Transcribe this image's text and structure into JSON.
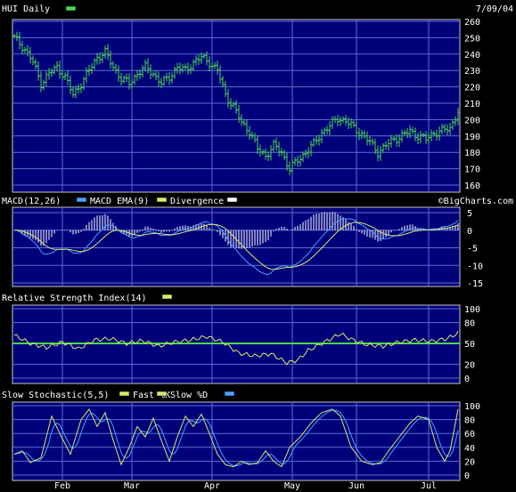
{
  "colors": {
    "plot_bg": "#00007a",
    "grid": "#5a6fd0",
    "border": "#c8c8c8",
    "price": "#4cd64c",
    "macd": "#4aa0ff",
    "macd_ema": "#d8e86a",
    "divergence": "#ffffff",
    "rsi": "#d8e86a",
    "rsi_mid": "#4cd64c",
    "fast_k": "#d8e86a",
    "slow_d": "#4aa0ff"
  },
  "header": {
    "title": "HUI Daily",
    "date": "7/09/04",
    "watermark": "©BigCharts.com"
  },
  "x_axis": {
    "months": [
      "Feb",
      "Mar",
      "Apr",
      "May",
      "Jun",
      "Jul"
    ]
  },
  "chart_data": [
    {
      "type": "ohlc",
      "name": "price",
      "title": "HUI Daily",
      "ylim": [
        160,
        260
      ],
      "yticks": [
        160,
        170,
        180,
        190,
        200,
        210,
        220,
        230,
        240,
        250,
        260
      ],
      "keypoints": [
        [
          0,
          250
        ],
        [
          4,
          243
        ],
        [
          7,
          235
        ],
        [
          10,
          222
        ],
        [
          13,
          228
        ],
        [
          16,
          232
        ],
        [
          19,
          226
        ],
        [
          22,
          215
        ],
        [
          25,
          222
        ],
        [
          28,
          230
        ],
        [
          31,
          238
        ],
        [
          34,
          241
        ],
        [
          37,
          232
        ],
        [
          40,
          225
        ],
        [
          43,
          222
        ],
        [
          46,
          228
        ],
        [
          49,
          232
        ],
        [
          52,
          228
        ],
        [
          55,
          222
        ],
        [
          58,
          226
        ],
        [
          61,
          232
        ],
        [
          64,
          230
        ],
        [
          67,
          235
        ],
        [
          70,
          238
        ],
        [
          73,
          235
        ],
        [
          76,
          230
        ],
        [
          79,
          215
        ],
        [
          82,
          208
        ],
        [
          85,
          198
        ],
        [
          88,
          193
        ],
        [
          91,
          182
        ],
        [
          94,
          178
        ],
        [
          97,
          184
        ],
        [
          100,
          180
        ],
        [
          103,
          170
        ],
        [
          106,
          175
        ],
        [
          109,
          180
        ],
        [
          112,
          185
        ],
        [
          115,
          192
        ],
        [
          118,
          196
        ],
        [
          121,
          201
        ],
        [
          124,
          199
        ],
        [
          127,
          195
        ],
        [
          130,
          191
        ],
        [
          133,
          186
        ],
        [
          136,
          180
        ],
        [
          139,
          184
        ],
        [
          142,
          188
        ],
        [
          145,
          190
        ],
        [
          148,
          193
        ],
        [
          151,
          190
        ],
        [
          154,
          188
        ],
        [
          157,
          192
        ],
        [
          160,
          193
        ],
        [
          163,
          195
        ],
        [
          166,
          205
        ]
      ]
    },
    {
      "type": "line",
      "name": "macd",
      "title": "MACD(12,26)",
      "legend": [
        "MACD EMA(9)",
        "Divergence"
      ],
      "ylim": [
        -15,
        5
      ],
      "yticks": [
        5,
        0,
        -5,
        -10,
        -15
      ]
    },
    {
      "type": "line",
      "name": "rsi",
      "title": "Relative Strength Index(14)",
      "ylim": [
        0,
        100
      ],
      "yticks": [
        0,
        20,
        50,
        80,
        100
      ],
      "midline": 50,
      "keypoints": [
        [
          0,
          62
        ],
        [
          6,
          50
        ],
        [
          12,
          44
        ],
        [
          18,
          52
        ],
        [
          24,
          42
        ],
        [
          30,
          55
        ],
        [
          36,
          57
        ],
        [
          42,
          50
        ],
        [
          48,
          54
        ],
        [
          54,
          46
        ],
        [
          60,
          52
        ],
        [
          66,
          55
        ],
        [
          72,
          60
        ],
        [
          78,
          52
        ],
        [
          84,
          36
        ],
        [
          90,
          32
        ],
        [
          96,
          35
        ],
        [
          102,
          22
        ],
        [
          106,
          26
        ],
        [
          110,
          40
        ],
        [
          116,
          52
        ],
        [
          122,
          64
        ],
        [
          126,
          56
        ],
        [
          132,
          48
        ],
        [
          138,
          46
        ],
        [
          144,
          52
        ],
        [
          150,
          55
        ],
        [
          156,
          53
        ],
        [
          162,
          57
        ],
        [
          166,
          65
        ]
      ]
    },
    {
      "type": "line",
      "name": "stochastic",
      "title": "Slow Stochastic(5,5)",
      "legend": [
        "Fast %K",
        "Slow %D"
      ],
      "ylim": [
        0,
        100
      ],
      "yticks": [
        0,
        20,
        40,
        60,
        80,
        100
      ],
      "keypoints": [
        [
          0,
          30
        ],
        [
          3,
          35
        ],
        [
          6,
          18
        ],
        [
          10,
          25
        ],
        [
          14,
          85
        ],
        [
          17,
          60
        ],
        [
          21,
          30
        ],
        [
          25,
          80
        ],
        [
          28,
          95
        ],
        [
          31,
          70
        ],
        [
          34,
          90
        ],
        [
          37,
          50
        ],
        [
          40,
          15
        ],
        [
          43,
          40
        ],
        [
          46,
          70
        ],
        [
          49,
          55
        ],
        [
          52,
          82
        ],
        [
          55,
          50
        ],
        [
          58,
          20
        ],
        [
          61,
          55
        ],
        [
          64,
          85
        ],
        [
          67,
          70
        ],
        [
          70,
          88
        ],
        [
          73,
          60
        ],
        [
          76,
          30
        ],
        [
          79,
          15
        ],
        [
          82,
          12
        ],
        [
          85,
          20
        ],
        [
          88,
          15
        ],
        [
          91,
          18
        ],
        [
          94,
          35
        ],
        [
          97,
          20
        ],
        [
          100,
          12
        ],
        [
          103,
          40
        ],
        [
          107,
          55
        ],
        [
          111,
          75
        ],
        [
          115,
          90
        ],
        [
          119,
          95
        ],
        [
          122,
          85
        ],
        [
          126,
          40
        ],
        [
          130,
          20
        ],
        [
          134,
          15
        ],
        [
          137,
          18
        ],
        [
          140,
          35
        ],
        [
          144,
          55
        ],
        [
          148,
          75
        ],
        [
          151,
          85
        ],
        [
          155,
          80
        ],
        [
          158,
          40
        ],
        [
          161,
          20
        ],
        [
          163,
          35
        ],
        [
          166,
          95
        ]
      ]
    }
  ]
}
